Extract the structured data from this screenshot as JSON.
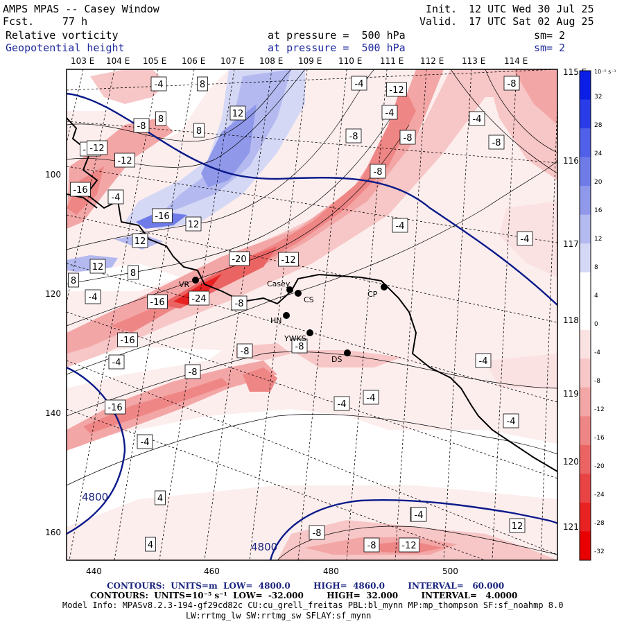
{
  "header": {
    "title": "AMPS MPAS -- Casey Window",
    "fcst_label": "Fcst.",
    "fcst_value": "77 h",
    "init_label": "Init.",
    "init_time": "12 UTC Wed 30 Jul 25",
    "valid_label": "Valid.",
    "valid_time": "17 UTC Sat 02 Aug 25",
    "field1": "Relative vorticity",
    "field1_pressure": "at pressure =  500 hPa",
    "field1_sm": "sm= 2",
    "field2": "Geopotential height",
    "field2_pressure": "at pressure =  500 hPa",
    "field2_sm": "sm= 2"
  },
  "axes": {
    "x_ticks": [
      "440",
      "460",
      "480",
      "500"
    ],
    "y_ticks": [
      "100",
      "120",
      "140",
      "160"
    ],
    "lon_labels_top": [
      "103 E",
      "104 E",
      "105 E",
      "106 E",
      "107 E",
      "108 E",
      "109 E",
      "110 E",
      "111 E",
      "112 E",
      "113 E",
      "114 E"
    ],
    "lon_labels_right": [
      "115 E",
      "116 E",
      "117 E",
      "118 E",
      "119 E",
      "120 E",
      "121 E"
    ]
  },
  "stations": [
    {
      "name": "Casey"
    },
    {
      "name": "CS"
    },
    {
      "name": "CP"
    },
    {
      "name": "HN"
    },
    {
      "name": "YWKS"
    },
    {
      "name": "DS"
    },
    {
      "name": "VR"
    }
  ],
  "height_labels": [
    "4800",
    "4800"
  ],
  "vorticity_labels": [
    "-4",
    "8",
    "-4",
    "-12",
    "-8",
    "8",
    "-8",
    "-4",
    "-12",
    "-12",
    "-8",
    "-8",
    "8",
    "-8",
    "-12",
    "12",
    "-8",
    "-4",
    "-16",
    "-4",
    "-16",
    "12",
    "-4",
    "-4",
    "-20",
    "-12",
    "12",
    "8",
    "12",
    "8",
    "-16",
    "-24",
    "-8",
    "-16",
    "-4",
    "-8",
    "-8",
    "-4",
    "-8",
    "-4",
    "-16",
    "-4",
    "-4",
    "-4",
    "4",
    "-4",
    "-8",
    "-4",
    "-8",
    "-12",
    "4",
    "12",
    "-4"
  ],
  "colorbar": {
    "unit": "10⁻⁵ s⁻¹",
    "labels": [
      "32",
      "28",
      "24",
      "20",
      "16",
      "12",
      "8",
      "4",
      "0",
      "-4",
      "-8",
      "-12",
      "-16",
      "-20",
      "-24",
      "-28",
      "-32"
    ],
    "colors": [
      "#0a1ee6",
      "#2a3ce8",
      "#5060e8",
      "#6f7ce8",
      "#9098ea",
      "#b4baf0",
      "#d5d8f5",
      "#ffffff",
      "#ffffff",
      "#fbe2e2",
      "#f7c6c6",
      "#f3a6a6",
      "#ef8686",
      "#eb6464",
      "#e94444",
      "#e82222",
      "#e80000"
    ]
  },
  "footer": {
    "contours1": "CONTOURS:  UNITS=m  LOW=  4800.0        HIGH=  4860.0        INTERVAL=   60.000",
    "contours2": "CONTOURS:  UNITS=10⁻⁵ s⁻¹  LOW=  -32.000        HIGH=  32.000        INTERVAL=   4.0000",
    "model_info": "Model Info: MPASv8.2.3-194-gf29cd82c CU:cu_grell_freitas PBL:bl_mynn MP:mp_thompson SF:sf_noahmp 8.0",
    "model_info2": "LW:rrtmg_lw SW:rrtmg_sw SFLAY:sf_mynn"
  }
}
